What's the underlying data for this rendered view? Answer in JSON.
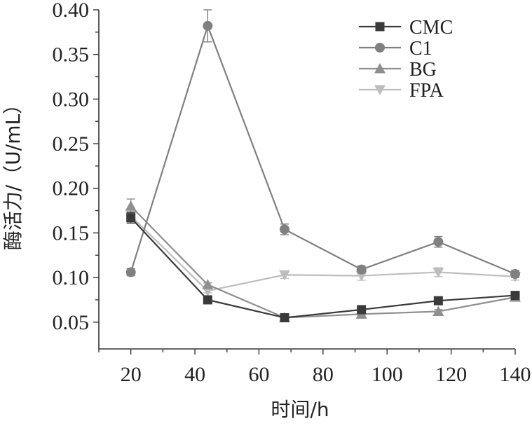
{
  "chart_data": {
    "type": "line",
    "xlabel": "时间/h",
    "ylabel": "酶活力/（U/mL）",
    "xlim": [
      10,
      140
    ],
    "ylim": [
      0.02,
      0.4
    ],
    "xticks": [
      20,
      40,
      60,
      80,
      100,
      120,
      140
    ],
    "yticks": [
      0.05,
      0.1,
      0.15,
      0.2,
      0.25,
      0.3,
      0.35,
      0.4
    ],
    "x": [
      20,
      44,
      68,
      92,
      116,
      140
    ],
    "legend_position": "top-right",
    "grid": false,
    "series": [
      {
        "name": "CMC",
        "marker": "square",
        "color": "#3a3a3a",
        "values": [
          0.167,
          0.075,
          0.055,
          0.064,
          0.074,
          0.08
        ],
        "errors": [
          0.006,
          0.002,
          0.002,
          0.002,
          0.002,
          0.002
        ]
      },
      {
        "name": "C1",
        "marker": "circle",
        "color": "#808080",
        "values": [
          0.106,
          0.382,
          0.154,
          0.109,
          0.14,
          0.104
        ],
        "errors": [
          0.004,
          0.018,
          0.006,
          0.004,
          0.006,
          0.004
        ]
      },
      {
        "name": "BG",
        "marker": "triangle-up",
        "color": "#8f8f8f",
        "values": [
          0.18,
          0.092,
          0.055,
          0.059,
          0.062,
          0.078
        ],
        "errors": [
          0.008,
          0.002,
          0.002,
          0.002,
          0.002,
          0.002
        ]
      },
      {
        "name": "FPA",
        "marker": "triangle-down",
        "color": "#bdbdbd",
        "values": [
          0.169,
          0.085,
          0.103,
          0.102,
          0.106,
          0.101
        ],
        "errors": [
          0.005,
          0.002,
          0.004,
          0.005,
          0.005,
          0.004
        ]
      }
    ]
  }
}
